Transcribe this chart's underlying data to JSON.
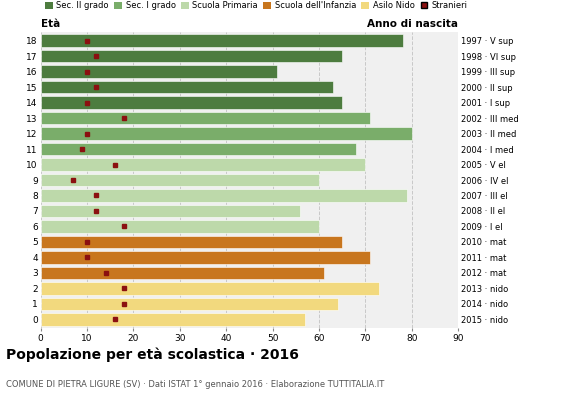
{
  "ages": [
    18,
    17,
    16,
    15,
    14,
    13,
    12,
    11,
    10,
    9,
    8,
    7,
    6,
    5,
    4,
    3,
    2,
    1,
    0
  ],
  "bar_values": [
    78,
    65,
    51,
    63,
    65,
    71,
    80,
    68,
    70,
    60,
    79,
    56,
    60,
    65,
    71,
    61,
    73,
    64,
    57
  ],
  "bar_colors": [
    "#4d7c3f",
    "#4d7c3f",
    "#4d7c3f",
    "#4d7c3f",
    "#4d7c3f",
    "#7aad6a",
    "#7aad6a",
    "#7aad6a",
    "#bdd9aa",
    "#bdd9aa",
    "#bdd9aa",
    "#bdd9aa",
    "#bdd9aa",
    "#c8761e",
    "#c8761e",
    "#c8761e",
    "#f2d97e",
    "#f2d97e",
    "#f2d97e"
  ],
  "stranieri_x": [
    10,
    12,
    10,
    12,
    10,
    18,
    10,
    9,
    16,
    7,
    12,
    12,
    18,
    10,
    10,
    14,
    18,
    18,
    16
  ],
  "right_labels": [
    "1997 · V sup",
    "1998 · VI sup",
    "1999 · III sup",
    "2000 · II sup",
    "2001 · I sup",
    "2002 · III med",
    "2003 · II med",
    "2004 · I med",
    "2005 · V el",
    "2006 · IV el",
    "2007 · III el",
    "2008 · II el",
    "2009 · I el",
    "2010 · mat",
    "2011 · mat",
    "2012 · mat",
    "2013 · nido",
    "2014 · nido",
    "2015 · nido"
  ],
  "legend_labels": [
    "Sec. II grado",
    "Sec. I grado",
    "Scuola Primaria",
    "Scuola dell'Infanzia",
    "Asilo Nido",
    "Stranieri"
  ],
  "legend_colors": [
    "#4d7c3f",
    "#7aad6a",
    "#bdd9aa",
    "#c8761e",
    "#f2d97e",
    "#8b1010"
  ],
  "title": "Popolazione per età scolastica · 2016",
  "subtitle": "COMUNE DI PIETRA LIGURE (SV) · Dati ISTAT 1° gennaio 2016 · Elaborazione TUTTITALIA.IT",
  "xlabel_eta": "Età",
  "xlabel_anno": "Anno di nascita",
  "xlim": [
    0,
    90
  ],
  "xticks": [
    0,
    10,
    20,
    30,
    40,
    50,
    60,
    70,
    80,
    90
  ],
  "stranieri_color": "#8b1010",
  "bar_height": 0.82,
  "bg_color": "#f0f0f0",
  "grid_color": "#c8c8c8"
}
